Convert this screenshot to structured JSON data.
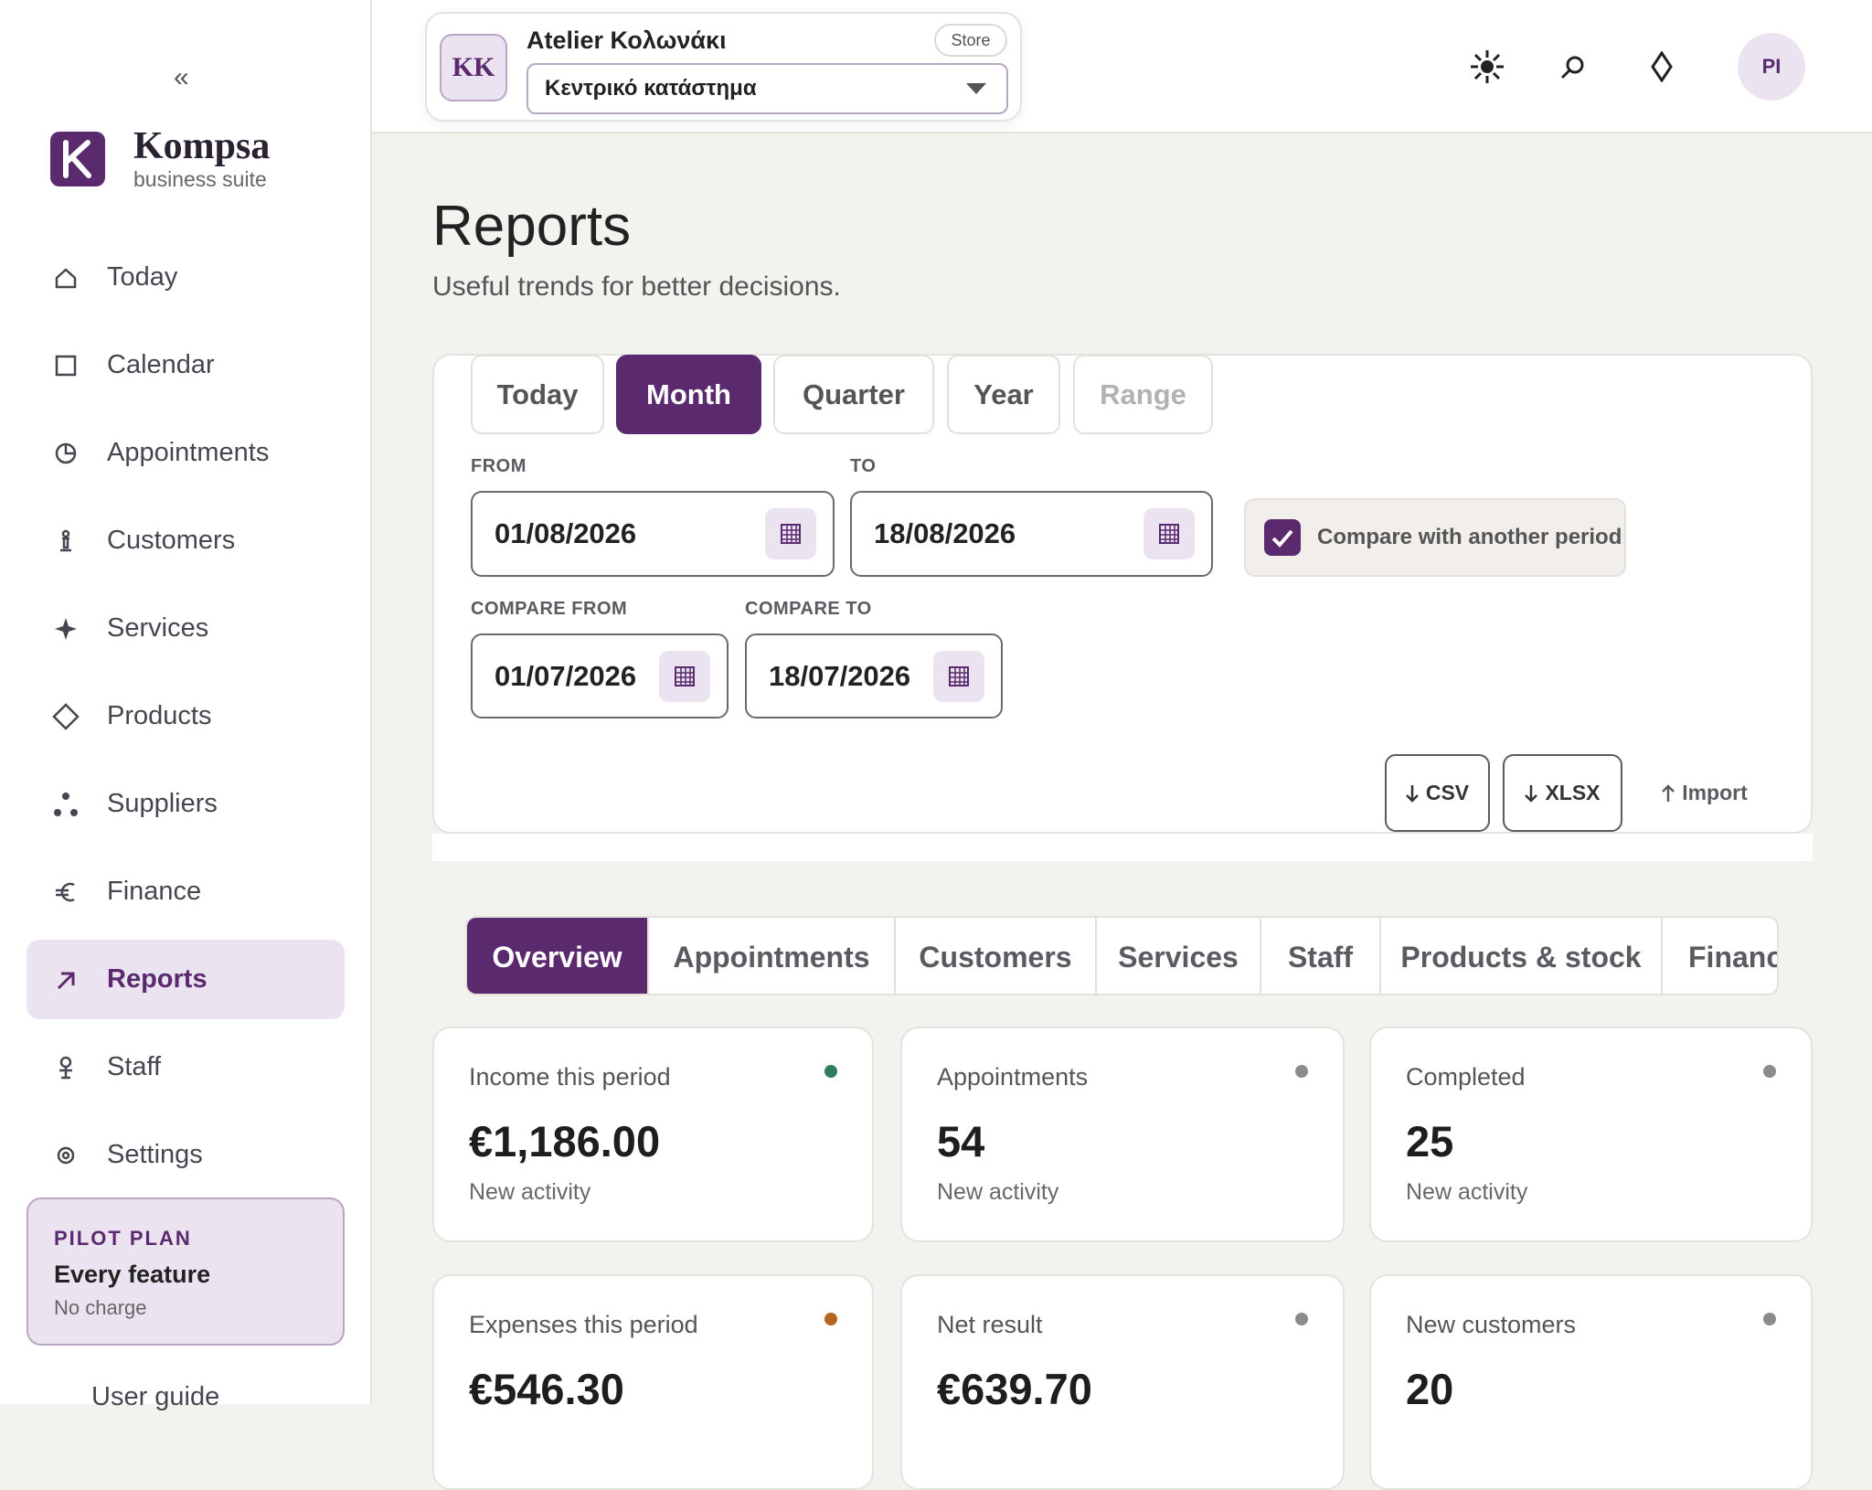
{
  "sidebar": {
    "collapse": "«",
    "brand": "Kompsa",
    "tagline": "business suite",
    "nav": [
      "Today",
      "Calendar",
      "Appointments",
      "Customers",
      "Services",
      "Products",
      "Suppliers",
      "Finance",
      "Reports",
      "Staff",
      "Settings"
    ],
    "active": "Reports",
    "plan": {
      "label": "PILOT PLAN",
      "title": "Every feature",
      "note": "No charge"
    },
    "footer_link": "User guide"
  },
  "header": {
    "store_initials": "KK",
    "store_name": "Atelier Κολωνάκι",
    "store_badge": "Store",
    "location": "Κεντρικό κατάστημα",
    "avatar": "PI"
  },
  "page": {
    "title": "Reports",
    "subtitle": "Useful trends for better decisions."
  },
  "period_tabs": {
    "items": [
      "Today",
      "Month",
      "Quarter",
      "Year",
      "Range"
    ],
    "active": "Month",
    "disabled": "Range"
  },
  "filters": {
    "from_label": "FROM",
    "from": "01/08/2026",
    "to_label": "TO",
    "to": "18/08/2026",
    "compare_label": "Compare with another period",
    "compare_checked": true,
    "compare_from_label": "COMPARE FROM",
    "compare_from": "01/07/2026",
    "compare_to_label": "COMPARE TO",
    "compare_to": "18/07/2026"
  },
  "actions": {
    "csv": "CSV",
    "xlsx": "XLSX",
    "import": "Import"
  },
  "report_tabs": {
    "items": [
      "Overview",
      "Appointments",
      "Customers",
      "Services",
      "Staff",
      "Products & stock",
      "Finance"
    ],
    "active": "Overview"
  },
  "kpis": [
    {
      "label": "Income this period",
      "value": "€1,186.00",
      "note": "New activity",
      "dot": "#2e7d5b"
    },
    {
      "label": "Appointments",
      "value": "54",
      "note": "New activity",
      "dot": "#8c8c8c"
    },
    {
      "label": "Completed",
      "value": "25",
      "note": "New activity",
      "dot": "#8c8c8c"
    },
    {
      "label": "Expenses this period",
      "value": "€546.30",
      "note": "",
      "dot": "#b5651d"
    },
    {
      "label": "Net result",
      "value": "€639.70",
      "note": "",
      "dot": "#8c8c8c"
    },
    {
      "label": "New customers",
      "value": "20",
      "note": "",
      "dot": "#8c8c8c"
    }
  ]
}
